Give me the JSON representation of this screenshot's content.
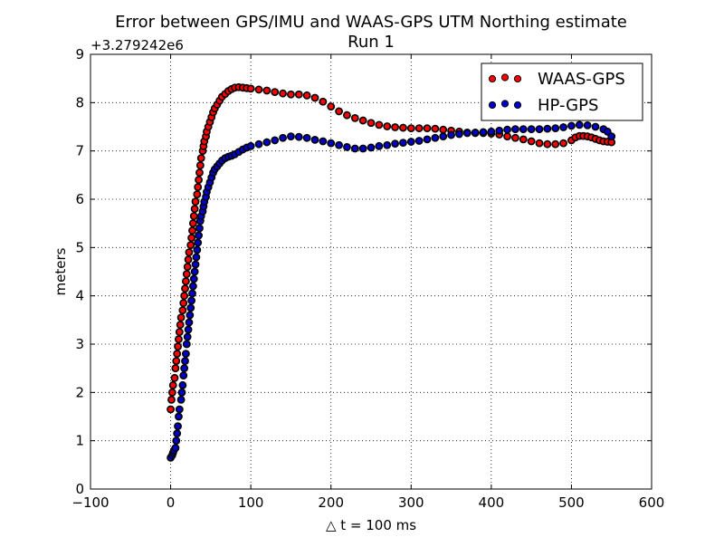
{
  "chart_data": {
    "type": "scatter",
    "title": "Error between GPS/IMU and WAAS-GPS UTM Northing estimate",
    "subtitle": "Run 1",
    "xlabel": "△ t = 100 ms",
    "ylabel": "meters",
    "y_offset_label": "+3.279242e6",
    "xlim": [
      -100,
      600
    ],
    "ylim": [
      0,
      9
    ],
    "x_ticks": [
      "−100",
      "0",
      "100",
      "200",
      "300",
      "400",
      "500",
      "600"
    ],
    "y_ticks": [
      "0",
      "1",
      "2",
      "3",
      "4",
      "5",
      "6",
      "7",
      "8",
      "9"
    ],
    "grid": true,
    "legend_position": "top-right",
    "series": [
      {
        "name": "WAAS-GPS",
        "color": "#ff0000",
        "points": [
          [
            0,
            1.65
          ],
          [
            1,
            1.85
          ],
          [
            2,
            2.0
          ],
          [
            3,
            2.15
          ],
          [
            5,
            2.3
          ],
          [
            6,
            2.5
          ],
          [
            7,
            2.65
          ],
          [
            8,
            2.8
          ],
          [
            9,
            2.95
          ],
          [
            10,
            3.1
          ],
          [
            11,
            3.25
          ],
          [
            12,
            3.4
          ],
          [
            13,
            3.55
          ],
          [
            15,
            3.7
          ],
          [
            16,
            3.85
          ],
          [
            17,
            4.0
          ],
          [
            18,
            4.15
          ],
          [
            19,
            4.3
          ],
          [
            20,
            4.45
          ],
          [
            21,
            4.6
          ],
          [
            22,
            4.75
          ],
          [
            23,
            4.9
          ],
          [
            25,
            5.05
          ],
          [
            26,
            5.2
          ],
          [
            27,
            5.35
          ],
          [
            28,
            5.5
          ],
          [
            29,
            5.65
          ],
          [
            30,
            5.8
          ],
          [
            31,
            5.95
          ],
          [
            33,
            6.1
          ],
          [
            34,
            6.25
          ],
          [
            35,
            6.4
          ],
          [
            36,
            6.55
          ],
          [
            37,
            6.7
          ],
          [
            38,
            6.85
          ],
          [
            40,
            7.0
          ],
          [
            41,
            7.1
          ],
          [
            42,
            7.2
          ],
          [
            44,
            7.3
          ],
          [
            45,
            7.4
          ],
          [
            47,
            7.5
          ],
          [
            49,
            7.6
          ],
          [
            51,
            7.7
          ],
          [
            53,
            7.8
          ],
          [
            55,
            7.88
          ],
          [
            58,
            7.96
          ],
          [
            61,
            8.04
          ],
          [
            64,
            8.12
          ],
          [
            68,
            8.18
          ],
          [
            72,
            8.24
          ],
          [
            76,
            8.28
          ],
          [
            80,
            8.31
          ],
          [
            85,
            8.32
          ],
          [
            90,
            8.31
          ],
          [
            95,
            8.3
          ],
          [
            100,
            8.29
          ],
          [
            110,
            8.27
          ],
          [
            120,
            8.25
          ],
          [
            130,
            8.22
          ],
          [
            140,
            8.19
          ],
          [
            150,
            8.17
          ],
          [
            160,
            8.17
          ],
          [
            170,
            8.15
          ],
          [
            180,
            8.1
          ],
          [
            190,
            8.02
          ],
          [
            200,
            7.92
          ],
          [
            210,
            7.82
          ],
          [
            220,
            7.74
          ],
          [
            230,
            7.68
          ],
          [
            240,
            7.63
          ],
          [
            250,
            7.58
          ],
          [
            260,
            7.54
          ],
          [
            270,
            7.51
          ],
          [
            280,
            7.49
          ],
          [
            290,
            7.48
          ],
          [
            300,
            7.47
          ],
          [
            310,
            7.47
          ],
          [
            320,
            7.47
          ],
          [
            330,
            7.46
          ],
          [
            340,
            7.44
          ],
          [
            350,
            7.42
          ],
          [
            360,
            7.4
          ],
          [
            370,
            7.38
          ],
          [
            380,
            7.37
          ],
          [
            390,
            7.37
          ],
          [
            400,
            7.36
          ],
          [
            410,
            7.34
          ],
          [
            420,
            7.3
          ],
          [
            430,
            7.27
          ],
          [
            440,
            7.24
          ],
          [
            450,
            7.2
          ],
          [
            460,
            7.16
          ],
          [
            470,
            7.14
          ],
          [
            480,
            7.14
          ],
          [
            490,
            7.16
          ],
          [
            500,
            7.22
          ],
          [
            505,
            7.28
          ],
          [
            510,
            7.31
          ],
          [
            515,
            7.31
          ],
          [
            520,
            7.3
          ],
          [
            525,
            7.28
          ],
          [
            530,
            7.25
          ],
          [
            535,
            7.22
          ],
          [
            540,
            7.2
          ],
          [
            545,
            7.19
          ],
          [
            550,
            7.18
          ]
        ]
      },
      {
        "name": "HP-GPS",
        "color": "#0000cc",
        "points": [
          [
            0,
            0.65
          ],
          [
            2,
            0.7
          ],
          [
            3,
            0.75
          ],
          [
            4,
            0.8
          ],
          [
            6,
            0.85
          ],
          [
            7,
            1.0
          ],
          [
            8,
            1.15
          ],
          [
            9,
            1.3
          ],
          [
            10,
            1.5
          ],
          [
            11,
            1.65
          ],
          [
            13,
            1.85
          ],
          [
            14,
            2.0
          ],
          [
            15,
            2.15
          ],
          [
            16,
            2.35
          ],
          [
            17,
            2.5
          ],
          [
            18,
            2.65
          ],
          [
            19,
            2.8
          ],
          [
            20,
            3.0
          ],
          [
            21,
            3.15
          ],
          [
            22,
            3.3
          ],
          [
            23,
            3.45
          ],
          [
            24,
            3.6
          ],
          [
            25,
            3.75
          ],
          [
            26,
            3.9
          ],
          [
            27,
            4.05
          ],
          [
            28,
            4.2
          ],
          [
            29,
            4.35
          ],
          [
            30,
            4.5
          ],
          [
            31,
            4.65
          ],
          [
            32,
            4.8
          ],
          [
            33,
            4.95
          ],
          [
            34,
            5.1
          ],
          [
            35,
            5.25
          ],
          [
            36,
            5.4
          ],
          [
            37,
            5.55
          ],
          [
            38,
            5.65
          ],
          [
            40,
            5.75
          ],
          [
            41,
            5.85
          ],
          [
            42,
            5.95
          ],
          [
            44,
            6.05
          ],
          [
            45,
            6.15
          ],
          [
            47,
            6.25
          ],
          [
            49,
            6.35
          ],
          [
            51,
            6.45
          ],
          [
            53,
            6.55
          ],
          [
            55,
            6.62
          ],
          [
            58,
            6.68
          ],
          [
            61,
            6.74
          ],
          [
            64,
            6.8
          ],
          [
            68,
            6.85
          ],
          [
            72,
            6.88
          ],
          [
            76,
            6.9
          ],
          [
            80,
            6.93
          ],
          [
            85,
            6.98
          ],
          [
            90,
            7.03
          ],
          [
            95,
            7.07
          ],
          [
            100,
            7.1
          ],
          [
            110,
            7.14
          ],
          [
            120,
            7.18
          ],
          [
            130,
            7.22
          ],
          [
            140,
            7.27
          ],
          [
            150,
            7.3
          ],
          [
            160,
            7.29
          ],
          [
            170,
            7.27
          ],
          [
            180,
            7.23
          ],
          [
            190,
            7.2
          ],
          [
            200,
            7.16
          ],
          [
            210,
            7.12
          ],
          [
            220,
            7.08
          ],
          [
            230,
            7.05
          ],
          [
            240,
            7.05
          ],
          [
            250,
            7.07
          ],
          [
            260,
            7.1
          ],
          [
            270,
            7.12
          ],
          [
            280,
            7.15
          ],
          [
            290,
            7.17
          ],
          [
            300,
            7.19
          ],
          [
            310,
            7.21
          ],
          [
            320,
            7.24
          ],
          [
            330,
            7.27
          ],
          [
            340,
            7.3
          ],
          [
            350,
            7.33
          ],
          [
            360,
            7.35
          ],
          [
            370,
            7.37
          ],
          [
            380,
            7.38
          ],
          [
            390,
            7.39
          ],
          [
            400,
            7.4
          ],
          [
            410,
            7.42
          ],
          [
            420,
            7.44
          ],
          [
            430,
            7.45
          ],
          [
            440,
            7.45
          ],
          [
            450,
            7.45
          ],
          [
            460,
            7.45
          ],
          [
            470,
            7.46
          ],
          [
            480,
            7.47
          ],
          [
            490,
            7.49
          ],
          [
            500,
            7.52
          ],
          [
            510,
            7.54
          ],
          [
            520,
            7.53
          ],
          [
            530,
            7.5
          ],
          [
            540,
            7.45
          ],
          [
            545,
            7.4
          ],
          [
            550,
            7.3
          ]
        ]
      }
    ]
  }
}
